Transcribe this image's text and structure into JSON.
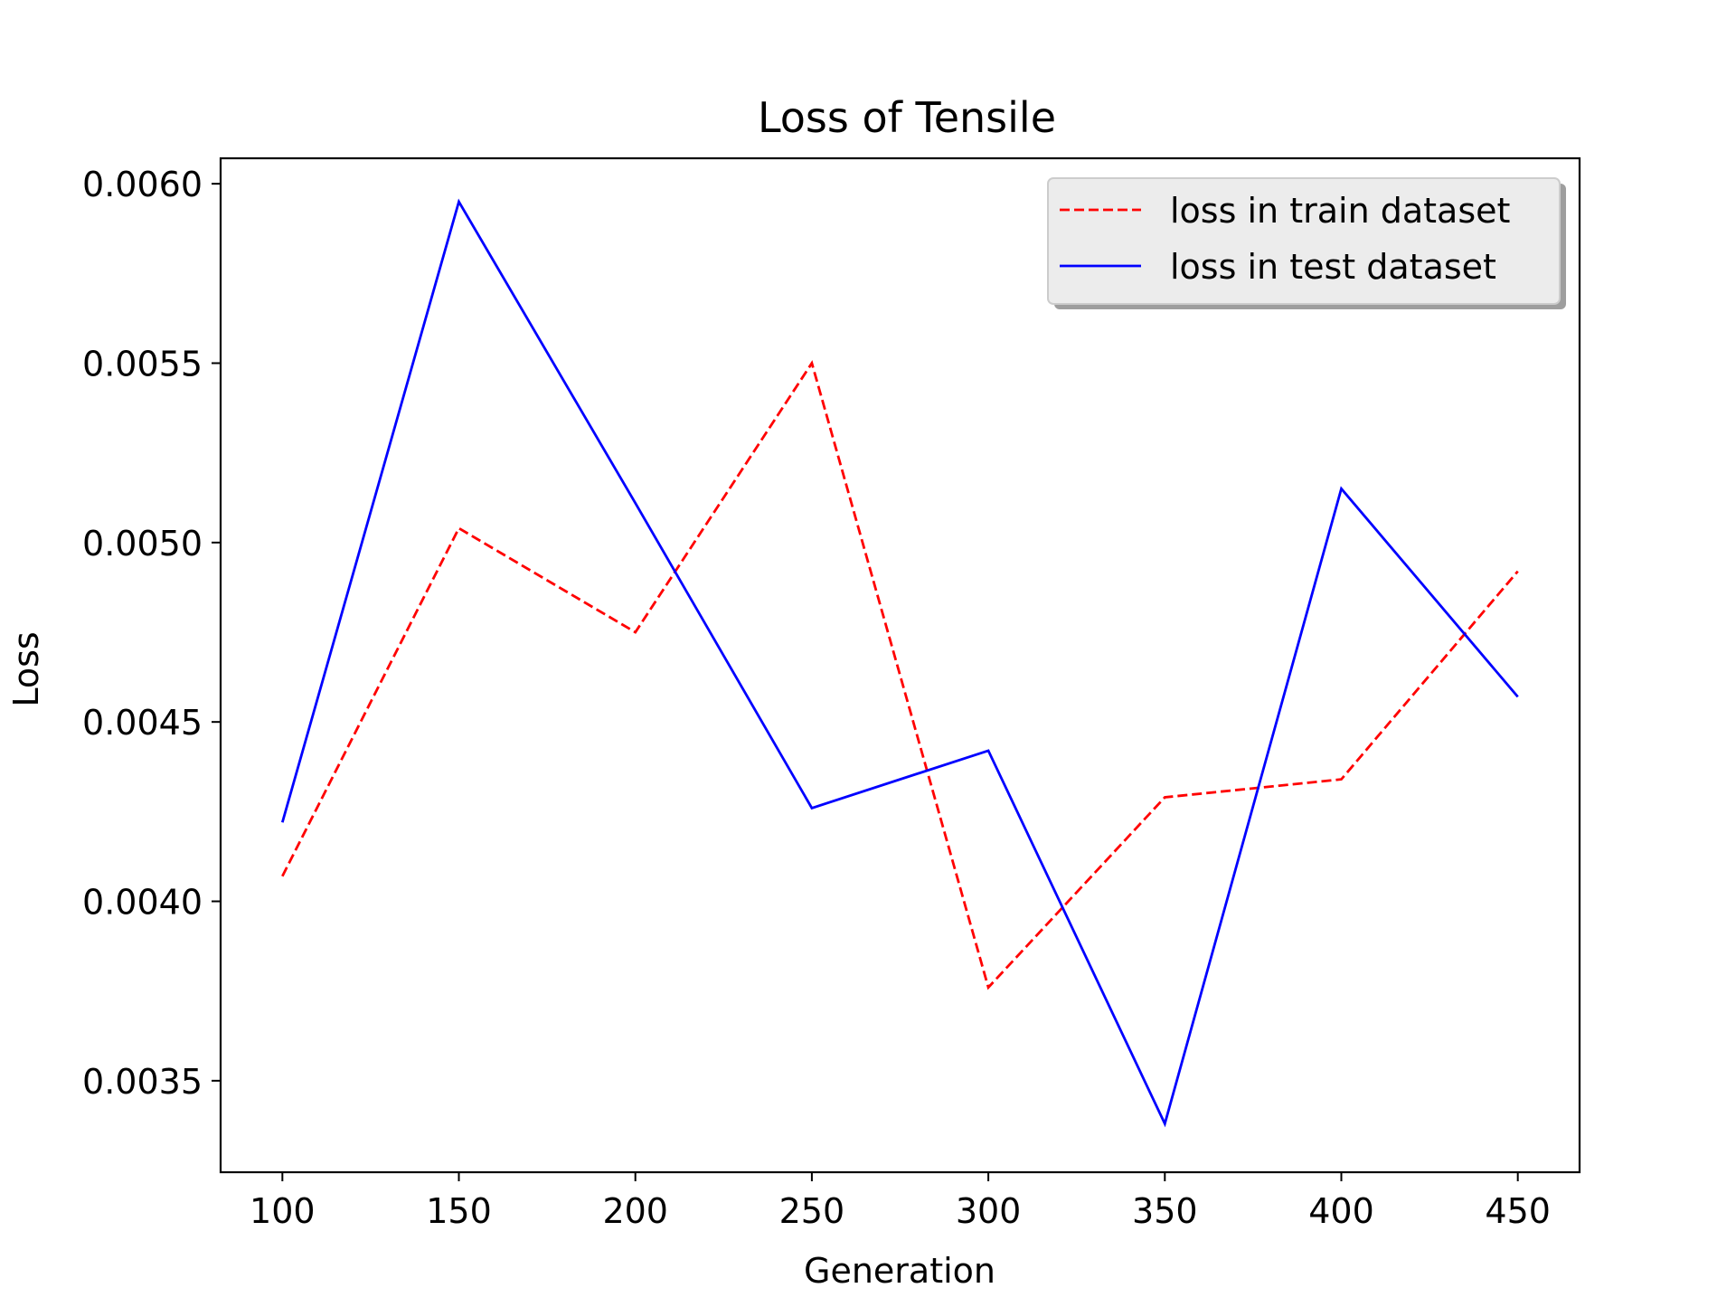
{
  "chart_data": {
    "type": "line",
    "title": "Loss of Tensile",
    "xlabel": "Generation",
    "ylabel": "Loss",
    "xlim": [
      82.5,
      467.5
    ],
    "ylim": [
      0.003245,
      0.006071
    ],
    "x_ticks": [
      100,
      150,
      200,
      250,
      300,
      350,
      400,
      450
    ],
    "x_tick_labels": [
      "100",
      "150",
      "200",
      "250",
      "300",
      "350",
      "400",
      "450"
    ],
    "y_ticks": [
      0.0035,
      0.004,
      0.0045,
      0.005,
      0.0055,
      0.006
    ],
    "y_tick_labels": [
      "0.0035",
      "0.0040",
      "0.0045",
      "0.0050",
      "0.0055",
      "0.0060"
    ],
    "grid": false,
    "legend_position": "upper right",
    "x": [
      100,
      150,
      200,
      250,
      300,
      350,
      400,
      450
    ],
    "series": [
      {
        "name": "loss in train dataset",
        "color": "#ff0000",
        "linestyle": "dashed",
        "values": [
          0.00407,
          0.00504,
          0.00475,
          0.0055,
          0.00376,
          0.00429,
          0.00434,
          0.00492
        ]
      },
      {
        "name": "loss in test dataset",
        "color": "#0000ff",
        "linestyle": "solid",
        "values": [
          0.00422,
          0.00595,
          0.00511,
          0.00426,
          0.00442,
          0.00338,
          0.00515,
          0.00457
        ]
      }
    ]
  }
}
